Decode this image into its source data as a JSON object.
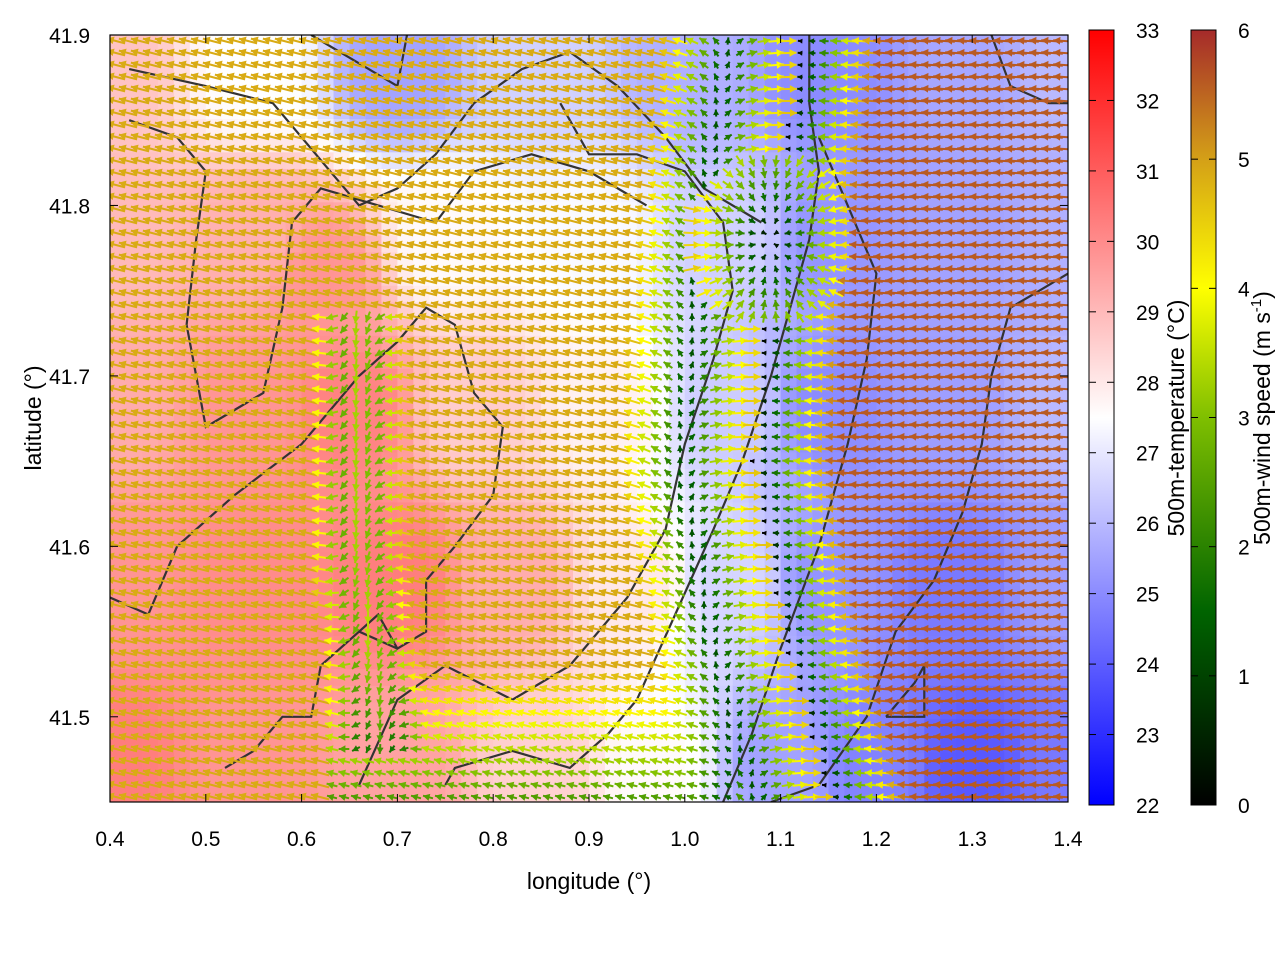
{
  "chart_data": {
    "type": "heatmap",
    "xlabel": "longitude (°)",
    "ylabel": "latitude (°)",
    "xlim": [
      0.4,
      1.4
    ],
    "ylim": [
      41.45,
      41.9
    ],
    "x_ticks": [
      "0.4",
      "0.5",
      "0.6",
      "0.7",
      "0.8",
      "0.9",
      "1.0",
      "1.1",
      "1.2",
      "1.3",
      "1.4"
    ],
    "y_ticks": [
      "41.5",
      "41.6",
      "41.7",
      "41.8",
      "41.9"
    ],
    "grid": false,
    "colorbars": [
      {
        "label": "500m-temperature (°C)",
        "range": [
          22,
          33
        ],
        "ticks": [
          "22",
          "23",
          "24",
          "25",
          "26",
          "27",
          "28",
          "29",
          "30",
          "31",
          "32",
          "33"
        ],
        "colors": [
          "#0000ff",
          "#ffffff",
          "#ff0000"
        ]
      },
      {
        "label_prefix": "500m-wind speed (m s",
        "label_sup": "-1",
        "label_suffix": ")",
        "range": [
          0,
          6
        ],
        "ticks": [
          "0",
          "1",
          "2",
          "3",
          "4",
          "5",
          "6"
        ],
        "colors": [
          "#000000",
          "#006400",
          "#7fbf00",
          "#ffff00",
          "#d4a017",
          "#a52a2a"
        ]
      }
    ],
    "temperature_anchors": [
      {
        "lon": 0.4,
        "lat": 41.88,
        "t": 28.8
      },
      {
        "lon": 0.55,
        "lat": 41.88,
        "t": 27.5
      },
      {
        "lon": 0.7,
        "lat": 41.88,
        "t": 25.5
      },
      {
        "lon": 0.85,
        "lat": 41.88,
        "t": 26.5
      },
      {
        "lon": 1.0,
        "lat": 41.88,
        "t": 25.8
      },
      {
        "lon": 1.15,
        "lat": 41.88,
        "t": 25.0
      },
      {
        "lon": 1.3,
        "lat": 41.88,
        "t": 25.6
      },
      {
        "lon": 1.4,
        "lat": 41.88,
        "t": 26.0
      },
      {
        "lon": 0.4,
        "lat": 41.78,
        "t": 29.0
      },
      {
        "lon": 0.55,
        "lat": 41.78,
        "t": 29.2
      },
      {
        "lon": 0.62,
        "lat": 41.76,
        "t": 29.8
      },
      {
        "lon": 0.75,
        "lat": 41.78,
        "t": 27.6
      },
      {
        "lon": 0.9,
        "lat": 41.78,
        "t": 27.4
      },
      {
        "lon": 1.05,
        "lat": 41.78,
        "t": 26.5
      },
      {
        "lon": 1.15,
        "lat": 41.78,
        "t": 25.2
      },
      {
        "lon": 1.3,
        "lat": 41.78,
        "t": 25.5
      },
      {
        "lon": 1.4,
        "lat": 41.78,
        "t": 25.8
      },
      {
        "lon": 0.4,
        "lat": 41.68,
        "t": 29.3
      },
      {
        "lon": 0.55,
        "lat": 41.68,
        "t": 29.8
      },
      {
        "lon": 0.65,
        "lat": 41.68,
        "t": 30.2
      },
      {
        "lon": 0.78,
        "lat": 41.68,
        "t": 28.6
      },
      {
        "lon": 0.92,
        "lat": 41.68,
        "t": 27.8
      },
      {
        "lon": 1.05,
        "lat": 41.68,
        "t": 26.4
      },
      {
        "lon": 1.15,
        "lat": 41.68,
        "t": 25.0
      },
      {
        "lon": 1.28,
        "lat": 41.68,
        "t": 25.4
      },
      {
        "lon": 1.4,
        "lat": 41.68,
        "t": 26.0
      },
      {
        "lon": 0.4,
        "lat": 41.58,
        "t": 29.8
      },
      {
        "lon": 0.55,
        "lat": 41.58,
        "t": 30.0
      },
      {
        "lon": 0.7,
        "lat": 41.58,
        "t": 30.3
      },
      {
        "lon": 0.82,
        "lat": 41.58,
        "t": 29.3
      },
      {
        "lon": 0.95,
        "lat": 41.58,
        "t": 28.0
      },
      {
        "lon": 1.05,
        "lat": 41.58,
        "t": 26.6
      },
      {
        "lon": 1.15,
        "lat": 41.58,
        "t": 25.2
      },
      {
        "lon": 1.28,
        "lat": 41.58,
        "t": 24.6
      },
      {
        "lon": 1.4,
        "lat": 41.58,
        "t": 25.4
      },
      {
        "lon": 0.4,
        "lat": 41.47,
        "t": 30.3
      },
      {
        "lon": 0.55,
        "lat": 41.47,
        "t": 29.8
      },
      {
        "lon": 0.7,
        "lat": 41.47,
        "t": 29.5
      },
      {
        "lon": 0.85,
        "lat": 41.47,
        "t": 28.5
      },
      {
        "lon": 0.97,
        "lat": 41.47,
        "t": 27.6
      },
      {
        "lon": 1.1,
        "lat": 41.47,
        "t": 25.5
      },
      {
        "lon": 1.2,
        "lat": 41.47,
        "t": 24.8
      },
      {
        "lon": 1.3,
        "lat": 41.47,
        "t": 23.9
      },
      {
        "lon": 1.4,
        "lat": 41.47,
        "t": 24.6
      }
    ],
    "wind_field": {
      "background_u": -4.5,
      "background_v": 1.2,
      "convergence_center": {
        "lon": 1.09,
        "lat": 41.78
      },
      "convergence_line_lon": [
        {
          "lat": 41.9,
          "lon": 1.12
        },
        {
          "lat": 41.78,
          "lon": 1.09
        },
        {
          "lat": 41.65,
          "lon": 1.07
        },
        {
          "lat": 41.55,
          "lon": 1.1
        },
        {
          "lat": 41.45,
          "lon": 1.15
        }
      ],
      "secondary_line_lon": [
        {
          "lat": 41.72,
          "lon": 0.66
        },
        {
          "lat": 41.6,
          "lon": 0.66
        },
        {
          "lat": 41.5,
          "lon": 0.68
        }
      ],
      "east_inflow_speed": 5.5,
      "west_flow_speed": 6.0
    },
    "contours": [
      [
        [
          0.42,
          41.88
        ],
        [
          0.5,
          41.87
        ],
        [
          0.57,
          41.86
        ],
        [
          0.63,
          41.82
        ],
        [
          0.66,
          41.8
        ],
        [
          0.7,
          41.81
        ],
        [
          0.74,
          41.83
        ],
        [
          0.78,
          41.86
        ],
        [
          0.83,
          41.88
        ],
        [
          0.88,
          41.89
        ],
        [
          0.93,
          41.87
        ],
        [
          0.98,
          41.84
        ],
        [
          1.02,
          41.81
        ],
        [
          1.08,
          41.79
        ]
      ],
      [
        [
          0.42,
          41.85
        ],
        [
          0.47,
          41.84
        ],
        [
          0.5,
          41.82
        ],
        [
          0.49,
          41.78
        ],
        [
          0.48,
          41.73
        ],
        [
          0.5,
          41.67
        ],
        [
          0.53,
          41.68
        ],
        [
          0.56,
          41.69
        ],
        [
          0.58,
          41.74
        ],
        [
          0.59,
          41.79
        ],
        [
          0.62,
          41.81
        ],
        [
          0.68,
          41.8
        ],
        [
          0.74,
          41.79
        ],
        [
          0.78,
          41.82
        ],
        [
          0.84,
          41.83
        ],
        [
          0.9,
          41.82
        ],
        [
          0.96,
          41.8
        ]
      ],
      [
        [
          0.4,
          41.57
        ],
        [
          0.44,
          41.56
        ],
        [
          0.47,
          41.6
        ],
        [
          0.53,
          41.63
        ],
        [
          0.6,
          41.66
        ],
        [
          0.66,
          41.7
        ],
        [
          0.7,
          41.72
        ],
        [
          0.73,
          41.74
        ],
        [
          0.76,
          41.73
        ],
        [
          0.78,
          41.69
        ],
        [
          0.81,
          41.67
        ],
        [
          0.8,
          41.63
        ],
        [
          0.76,
          41.6
        ],
        [
          0.73,
          41.58
        ],
        [
          0.73,
          41.55
        ],
        [
          0.7,
          41.54
        ],
        [
          0.68,
          41.56
        ],
        [
          0.66,
          41.55
        ]
      ],
      [
        [
          0.52,
          41.47
        ],
        [
          0.55,
          41.48
        ],
        [
          0.58,
          41.5
        ],
        [
          0.61,
          41.5
        ],
        [
          0.62,
          41.53
        ],
        [
          0.66,
          41.55
        ],
        [
          0.7,
          41.54
        ]
      ],
      [
        [
          0.66,
          41.46
        ],
        [
          0.7,
          41.51
        ],
        [
          0.75,
          41.53
        ],
        [
          0.82,
          41.51
        ],
        [
          0.88,
          41.53
        ],
        [
          0.94,
          41.57
        ],
        [
          0.98,
          41.61
        ],
        [
          1.0,
          41.66
        ],
        [
          1.03,
          41.71
        ],
        [
          1.05,
          41.75
        ],
        [
          1.04,
          41.79
        ],
        [
          1.0,
          41.82
        ],
        [
          0.95,
          41.83
        ],
        [
          0.9,
          41.83
        ],
        [
          0.87,
          41.86
        ]
      ],
      [
        [
          0.75,
          41.46
        ],
        [
          0.76,
          41.47
        ],
        [
          0.82,
          41.48
        ],
        [
          0.88,
          41.47
        ],
        [
          0.92,
          41.49
        ],
        [
          0.95,
          41.51
        ],
        [
          0.99,
          41.56
        ],
        [
          1.03,
          41.61
        ],
        [
          1.06,
          41.65
        ],
        [
          1.09,
          41.7
        ],
        [
          1.11,
          41.74
        ],
        [
          1.13,
          41.78
        ],
        [
          1.14,
          41.82
        ],
        [
          1.13,
          41.86
        ],
        [
          1.13,
          41.9
        ]
      ],
      [
        [
          1.04,
          41.45
        ],
        [
          1.07,
          41.49
        ],
        [
          1.1,
          41.54
        ],
        [
          1.14,
          41.6
        ],
        [
          1.17,
          41.66
        ],
        [
          1.19,
          41.71
        ],
        [
          1.2,
          41.76
        ],
        [
          1.17,
          41.8
        ],
        [
          1.14,
          41.84
        ]
      ],
      [
        [
          1.09,
          41.45
        ],
        [
          1.14,
          41.46
        ],
        [
          1.19,
          41.5
        ],
        [
          1.22,
          41.55
        ],
        [
          1.26,
          41.58
        ],
        [
          1.29,
          41.62
        ],
        [
          1.31,
          41.66
        ],
        [
          1.32,
          41.7
        ],
        [
          1.34,
          41.74
        ],
        [
          1.37,
          41.75
        ],
        [
          1.4,
          41.76
        ]
      ],
      [
        [
          1.21,
          41.5
        ],
        [
          1.24,
          41.52
        ],
        [
          1.25,
          41.53
        ],
        [
          1.25,
          41.5
        ],
        [
          1.21,
          41.5
        ]
      ],
      [
        [
          0.61,
          41.9
        ],
        [
          0.67,
          41.88
        ],
        [
          0.7,
          41.87
        ],
        [
          0.71,
          41.9
        ]
      ],
      [
        [
          1.32,
          41.9
        ],
        [
          1.34,
          41.87
        ],
        [
          1.38,
          41.86
        ],
        [
          1.4,
          41.86
        ]
      ]
    ]
  }
}
